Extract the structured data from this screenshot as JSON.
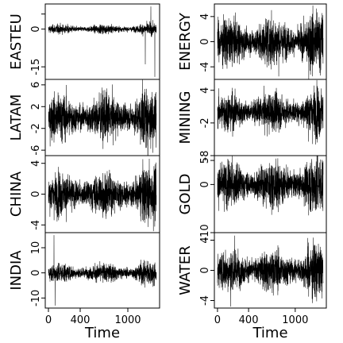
{
  "chart_data": [
    {
      "type": "line",
      "ylabel": "EASTEU",
      "yticks": [
        6,
        0,
        -15
      ],
      "ytick_labels": [
        "",
        "0",
        "-15"
      ],
      "ylim": [
        -20,
        10
      ],
      "xaxis_labels": false,
      "spikes": [
        {
          "t": 1290,
          "v": 9
        },
        {
          "t": 1220,
          "v": -14
        },
        {
          "t": 1340,
          "v": -19
        }
      ]
    },
    {
      "type": "line",
      "ylabel": "LATAM",
      "yticks": [
        6,
        2,
        -2,
        -6
      ],
      "ytick_labels": [
        "6",
        "2",
        "-2",
        "-6"
      ],
      "ylim": [
        -7,
        7
      ],
      "xaxis_labels": false,
      "spikes": []
    },
    {
      "type": "line",
      "ylabel": "CHINA",
      "yticks": [
        4,
        0,
        -4
      ],
      "ytick_labels": [
        "4",
        "0",
        "-4"
      ],
      "ylim": [
        -5,
        5
      ],
      "xaxis_labels": false,
      "spikes": []
    },
    {
      "type": "line",
      "ylabel": "INDIA",
      "yticks": [
        10,
        0,
        -10
      ],
      "ytick_labels": [
        "10",
        "0",
        "-10"
      ],
      "ylim": [
        -14,
        16
      ],
      "xaxis_labels": true,
      "xlabel": "Time",
      "xticks": [
        0,
        400,
        1000
      ],
      "xtick_labels": [
        "0",
        "400",
        "1000"
      ],
      "spikes": [
        {
          "t": 70,
          "v": 15
        },
        {
          "t": 85,
          "v": -13
        }
      ]
    },
    {
      "type": "line",
      "ylabel": "ENERGY",
      "yticks": [
        4,
        0,
        -4
      ],
      "ytick_labels": [
        "4",
        "0",
        "-4"
      ],
      "ylim": [
        -6,
        6
      ],
      "xaxis_labels": false,
      "spikes": []
    },
    {
      "type": "line",
      "ylabel": "MINING",
      "yticks": [
        4,
        -2,
        -8
      ],
      "ytick_labels": [
        "4",
        "-2",
        "-8"
      ],
      "ylim": [
        -8,
        6
      ],
      "xaxis_labels": false,
      "spikes": []
    },
    {
      "type": "line",
      "ylabel": "GOLD",
      "yticks": [
        5,
        0,
        -10
      ],
      "ytick_labels": [
        "5",
        "0",
        "-10"
      ],
      "ylim": [
        -10,
        6
      ],
      "xaxis_labels": false,
      "spikes": []
    },
    {
      "type": "line",
      "ylabel": "WATER",
      "yticks": [
        4,
        0,
        -4
      ],
      "ytick_labels": [
        "4",
        "0",
        "-4"
      ],
      "ylim": [
        -5,
        5
      ],
      "xaxis_labels": true,
      "xlabel": "Time",
      "xticks": [
        0,
        400,
        1000
      ],
      "xtick_labels": [
        "0",
        "400",
        "1000"
      ],
      "spikes": [
        {
          "t": 170,
          "v": -4.8
        },
        {
          "t": 220,
          "v": 4.6
        }
      ]
    }
  ]
}
